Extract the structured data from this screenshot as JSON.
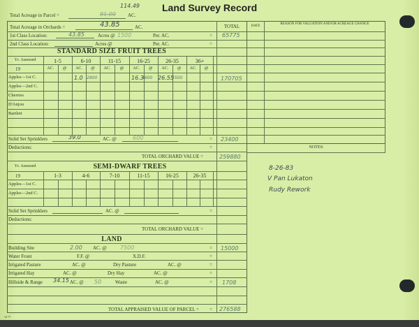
{
  "title": "Land Survey Record",
  "header": {
    "parcel_label": "Total Acreage in Parcel =",
    "parcel_value_struck": "81.00",
    "parcel_value_new": "114.49",
    "ac": "AC.",
    "orchards_label": "Total Acreage in Orchards =",
    "orchards_value": "43.85",
    "first_class_label": "1st Class Location:",
    "first_class_acres": "43.85",
    "acres_at": "Acres @",
    "first_class_rate": "1500",
    "per_ac": "Per. AC.",
    "eq": "=",
    "first_class_total": "65775",
    "second_class_label": "2nd Class Location:"
  },
  "columns": {
    "total": "TOTAL",
    "date": "DATE",
    "reason": "REASON FOR VALUATION AND/OR ACREAGE CHANGE",
    "notes": "NOTES:"
  },
  "standard": {
    "heading": "STANDARD SIZE FRUIT TREES",
    "yr_assessed": "Yr. Assessed",
    "year": "19",
    "groups": [
      "1-5",
      "6-10",
      "11-15",
      "16-25",
      "26-35",
      "36+"
    ],
    "ac": "AC.",
    "at": "@",
    "rows": [
      "Apples—1st C.",
      "Apples—2nd C.",
      "Cherries",
      "D'Anjou",
      "Bartlett"
    ],
    "apples1": {
      "g2_ac": "1.0",
      "g2_at": "2800",
      "g4_ac": "16.3",
      "g4_at": "4600",
      "g5_ac": "26.55",
      "g5_at": "3500",
      "total": "170705"
    },
    "sprinklers_label": "Solid Set Sprinklers",
    "sprinklers_ac": "39.0",
    "sprinklers_ac_label": "AC. @",
    "sprinklers_rate": "600",
    "sprinklers_total": "23400",
    "deductions": "Deductions:",
    "total_label": "TOTAL ORCHARD VALUE =",
    "total_value": "259880"
  },
  "semi": {
    "heading": "SEMI-DWARF TREES",
    "yr_assessed": "Yr. Assessed",
    "year": "19",
    "groups": [
      "1-3",
      "4-6",
      "7-10",
      "11-15",
      "16-25",
      "26-35"
    ],
    "rows": [
      "Apples—1st C.",
      "Apples—2nd C."
    ],
    "sprinklers_label": "Solid Set Sprinklers",
    "sprinklers_ac_label": "AC. @",
    "deductions": "Deductions:",
    "total_label": "TOTAL ORCHARD VALUE ="
  },
  "land": {
    "heading": "LAND",
    "building": "Building Site",
    "building_ac": "2.00",
    "ac_at": "AC. @",
    "building_rate": "7500",
    "building_total": "15000",
    "water": "Water Front",
    "ff": "F.F. @",
    "xdf": "X.D.F.",
    "irr_pasture": "Irrigated Pasture",
    "dry_pasture": "Dry Pasture",
    "irr_hay": "Irrigated Hay",
    "dry_hay": "Dry Hay",
    "hillside": "Hillside & Range",
    "hillside_ac": "34.15",
    "hillside_rate": "50",
    "waste": "Waste",
    "hillside_total": "1708",
    "total_label": "TOTAL APPRAISED VALUE OF PARCEL =",
    "total_value": "276588",
    "eq": "="
  },
  "notes": [
    "8-26-83",
    "V Pan Lukaton",
    "Rudy Rework"
  ],
  "form_code": "12-77"
}
